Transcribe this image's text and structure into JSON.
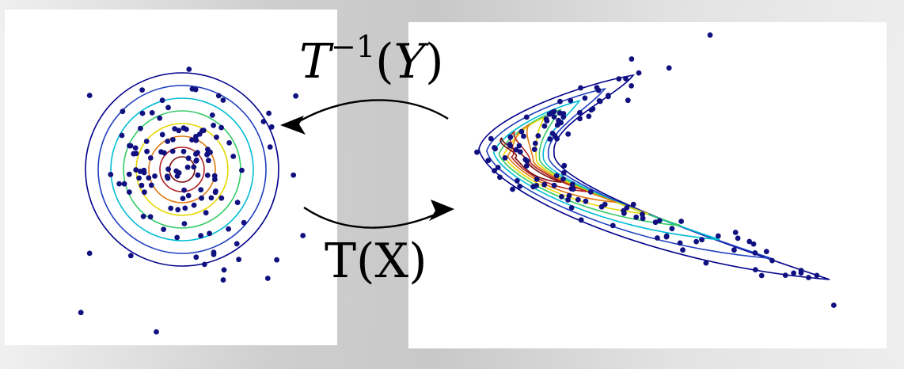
{
  "labels": {
    "inverse_T": "T",
    "inverse_exp": "−1",
    "inverse_open": "(",
    "inverse_var": "Y",
    "inverse_close": ")",
    "forward": "T(X)"
  },
  "colors": {
    "contours": [
      "#00008b",
      "#1f3fbf",
      "#00bcd4",
      "#33cc66",
      "#e6d800",
      "#e07a10",
      "#b22222",
      "#7a0b0b"
    ],
    "points": "#101080",
    "arrows": "#000000"
  }
}
